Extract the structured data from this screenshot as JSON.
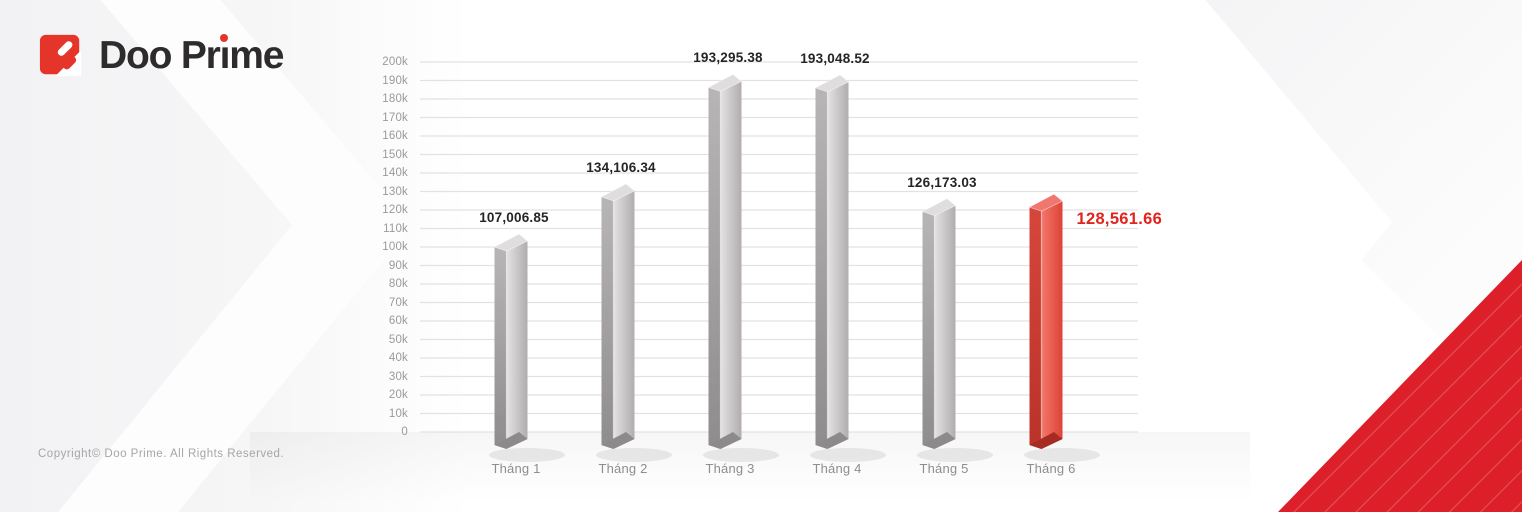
{
  "brand": {
    "name": "Doo Prime"
  },
  "footer": {
    "copyright": "Copyright© Doo Prime. All Rights Reserved."
  },
  "chart_data": {
    "type": "bar",
    "title": "",
    "categories": [
      "Tháng 1",
      "Tháng 2",
      "Tháng 3",
      "Tháng 4",
      "Tháng 5",
      "Tháng 6"
    ],
    "values": [
      107006.85,
      134106.34,
      193295.38,
      193048.52,
      126173.03,
      128561.66
    ],
    "value_labels": [
      "107,006.85",
      "134,106.34",
      "193,295.38",
      "193,048.52",
      "126,173.03",
      "128,561.66"
    ],
    "highlight_index": 5,
    "ylim": [
      0,
      200000
    ],
    "y_tick_step": 10000,
    "y_tick_labels": [
      "0",
      "10k",
      "20k",
      "30k",
      "40k",
      "50k",
      "60k",
      "70k",
      "80k",
      "90k",
      "100k",
      "110k",
      "120k",
      "130k",
      "140k",
      "150k",
      "160k",
      "170k",
      "180k",
      "190k",
      "200k"
    ],
    "grid": true,
    "legend": null,
    "colors": {
      "bar_gray_left_top": "#b8b5b6",
      "bar_gray_left_bottom": "#8f8c8d",
      "bar_gray_right_light": "#e4e2e3",
      "bar_gray_right_dark": "#b0adae",
      "bar_gray_top": "#dfddde",
      "bar_gray_base": "#8d8a8b",
      "bar_red_left_top": "#d6463b",
      "bar_red_left_bottom": "#ba3228",
      "bar_red_right_light": "#f4776c",
      "bar_red_right_dark": "#dd4336",
      "bar_red_top": "#f0766e",
      "bar_red_base": "#a62b22",
      "value_label": "#262426",
      "value_label_highlight": "#e0241e",
      "axis_label": "#9b999b",
      "gridline": "#e3e2e3",
      "accent_red": "#dc1f28",
      "logo_red": "#e5352b",
      "logo_text": "#2e2b2c"
    }
  }
}
